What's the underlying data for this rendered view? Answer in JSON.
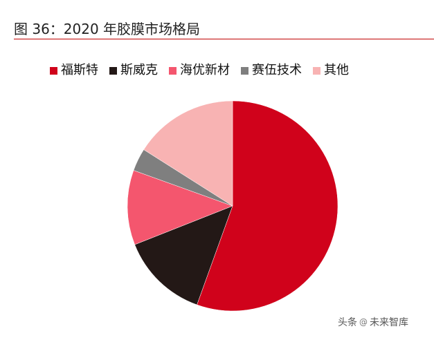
{
  "figure": {
    "title": "图 36：2020 年胶膜市场格局"
  },
  "chart_data": {
    "type": "pie",
    "series": [
      {
        "name": "福斯特",
        "value": 55.5,
        "color": "#d0021b"
      },
      {
        "name": "斯威克",
        "value": 13.5,
        "color": "#231816"
      },
      {
        "name": "海优新材",
        "value": 11.5,
        "color": "#f4566e"
      },
      {
        "name": "赛伍技术",
        "value": 3.5,
        "color": "#7f7f7f"
      },
      {
        "name": "其他",
        "value": 16.0,
        "color": "#f8b3b3"
      }
    ],
    "legend_position": "top",
    "start_angle_deg": 0,
    "direction": "clockwise"
  },
  "watermark": {
    "text_left": "头条",
    "icon": "at-icon",
    "text_right": "未来智库"
  }
}
